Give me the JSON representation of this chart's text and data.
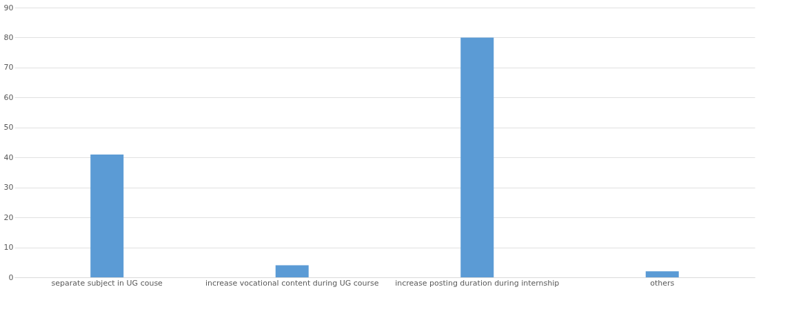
{
  "chart_data": {
    "type": "bar",
    "categories": [
      "separate subject in UG couse",
      "increase vocational content during UG course",
      "increase posting duration during internship",
      "others"
    ],
    "values": [
      41,
      4,
      80,
      2
    ],
    "color": "#5b9bd5",
    "ylim": [
      0,
      90
    ],
    "yticks": [
      0,
      10,
      20,
      30,
      40,
      50,
      60,
      70,
      80,
      90
    ],
    "grid": "y"
  }
}
